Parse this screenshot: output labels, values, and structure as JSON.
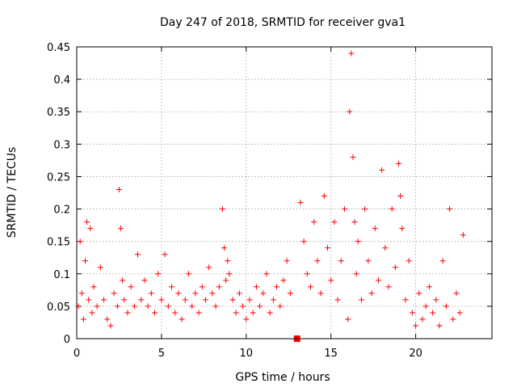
{
  "chart_data": {
    "type": "scatter",
    "title": "Day 247 of 2018, SRMTID for receiver gva1",
    "xlabel": "GPS time / hours",
    "ylabel": "SRMTID / TECUs",
    "xlim": [
      0,
      24.5
    ],
    "ylim": [
      0,
      0.45
    ],
    "xticks": [
      0,
      5,
      10,
      15,
      20
    ],
    "xtick_labels": [
      "0",
      "5",
      "10",
      "15",
      "20"
    ],
    "yticks": [
      0,
      0.05,
      0.1,
      0.15,
      0.2,
      0.25,
      0.3,
      0.35,
      0.4,
      0.45
    ],
    "ytick_labels": [
      "0",
      "0.05",
      "0.1",
      "0.15",
      "0.2",
      "0.25",
      "0.3",
      "0.35",
      "0.4",
      "0.45"
    ],
    "grid": true,
    "marker": "plus",
    "color": "#ff0000",
    "series": [
      {
        "name": "SRMTID",
        "x": [
          0.1,
          0.2,
          0.3,
          0.4,
          0.5,
          0.6,
          0.7,
          0.8,
          0.9,
          1.0,
          1.2,
          1.4,
          1.6,
          1.8,
          2.0,
          2.2,
          2.4,
          2.5,
          2.6,
          2.7,
          2.8,
          3.0,
          3.2,
          3.4,
          3.6,
          3.8,
          4.0,
          4.2,
          4.4,
          4.6,
          4.8,
          5.0,
          5.2,
          5.4,
          5.6,
          5.8,
          6.0,
          6.2,
          6.4,
          6.6,
          6.8,
          7.0,
          7.2,
          7.4,
          7.6,
          7.8,
          8.0,
          8.2,
          8.4,
          8.6,
          8.7,
          8.8,
          8.9,
          9.0,
          9.2,
          9.4,
          9.6,
          9.8,
          10.0,
          10.2,
          10.4,
          10.6,
          10.8,
          11.0,
          11.2,
          11.4,
          11.6,
          11.8,
          12.0,
          12.2,
          12.4,
          12.6,
          12.9,
          13.2,
          13.4,
          13.6,
          13.8,
          14.0,
          14.2,
          14.4,
          14.6,
          14.8,
          15.0,
          15.2,
          15.4,
          15.6,
          15.8,
          16.0,
          16.1,
          16.2,
          16.3,
          16.4,
          16.5,
          16.6,
          16.8,
          17.0,
          17.2,
          17.4,
          17.6,
          17.8,
          18.0,
          18.2,
          18.4,
          18.6,
          18.8,
          19.0,
          19.1,
          19.2,
          19.4,
          19.6,
          19.8,
          20.0,
          20.2,
          20.4,
          20.6,
          20.8,
          21.0,
          21.2,
          21.4,
          21.6,
          21.8,
          22.0,
          22.2,
          22.4,
          22.6,
          22.8
        ],
        "y": [
          0.05,
          0.15,
          0.07,
          0.03,
          0.12,
          0.18,
          0.06,
          0.17,
          0.04,
          0.08,
          0.05,
          0.11,
          0.06,
          0.03,
          0.02,
          0.07,
          0.05,
          0.23,
          0.17,
          0.09,
          0.06,
          0.04,
          0.08,
          0.05,
          0.13,
          0.06,
          0.09,
          0.05,
          0.07,
          0.04,
          0.1,
          0.06,
          0.13,
          0.05,
          0.08,
          0.04,
          0.07,
          0.03,
          0.06,
          0.1,
          0.05,
          0.07,
          0.04,
          0.08,
          0.06,
          0.11,
          0.07,
          0.05,
          0.08,
          0.2,
          0.14,
          0.09,
          0.12,
          0.1,
          0.06,
          0.04,
          0.07,
          0.05,
          0.03,
          0.06,
          0.04,
          0.08,
          0.05,
          0.07,
          0.1,
          0.04,
          0.06,
          0.08,
          0.05,
          0.09,
          0.12,
          0.07,
          0.0,
          0.21,
          0.15,
          0.1,
          0.08,
          0.18,
          0.12,
          0.07,
          0.22,
          0.14,
          0.09,
          0.18,
          0.06,
          0.12,
          0.2,
          0.03,
          0.35,
          0.44,
          0.28,
          0.18,
          0.1,
          0.15,
          0.06,
          0.2,
          0.12,
          0.07,
          0.17,
          0.09,
          0.26,
          0.14,
          0.08,
          0.2,
          0.11,
          0.27,
          0.22,
          0.17,
          0.06,
          0.12,
          0.04,
          0.02,
          0.07,
          0.03,
          0.05,
          0.08,
          0.04,
          0.06,
          0.02,
          0.12,
          0.05,
          0.2,
          0.03,
          0.07,
          0.04,
          0.16
        ]
      }
    ],
    "extra_points": [
      {
        "x": 13.0,
        "y": 0.0,
        "marker": "square"
      }
    ]
  }
}
